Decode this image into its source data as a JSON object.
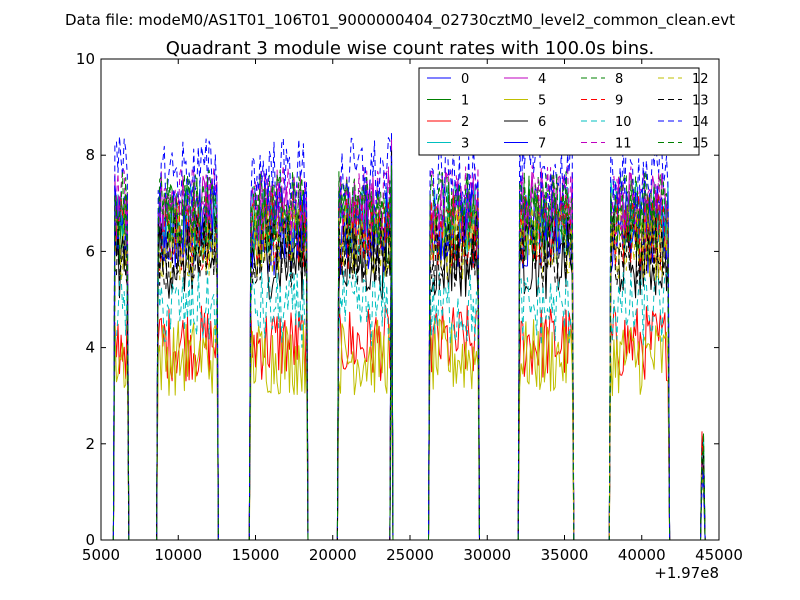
{
  "figure": {
    "suptitle": "Data file: modeM0/AS1T01_106T01_9000000404_02730cztM0_level2_common_clean.evt",
    "background": "#ffffff"
  },
  "chart_data": {
    "type": "line",
    "title": "Quadrant 3 module wise count rates with 100.0s bins.",
    "xlabel": "",
    "ylabel": "",
    "x_offset_label": "+1.97e8",
    "xlim": [
      5000,
      45000
    ],
    "ylim": [
      0,
      10
    ],
    "xticks": [
      5000,
      10000,
      15000,
      20000,
      25000,
      30000,
      35000,
      40000,
      45000
    ],
    "xtick_labels": [
      "5000",
      "10000",
      "15000",
      "20000",
      "25000",
      "30000",
      "35000",
      "40000",
      "45000"
    ],
    "yticks": [
      0,
      2,
      4,
      6,
      8,
      10
    ],
    "ytick_labels": [
      "0",
      "2",
      "4",
      "6",
      "8",
      "10"
    ],
    "grid": false,
    "legend_position": "top-right",
    "bin_width": 100,
    "segments": [
      {
        "start": 5900,
        "end": 6700
      },
      {
        "start": 8700,
        "end": 12500
      },
      {
        "start": 14700,
        "end": 18300
      },
      {
        "start": 20400,
        "end": 23800
      },
      {
        "start": 23800,
        "end": 24200
      },
      {
        "start": 26300,
        "end": 29400
      },
      {
        "start": 32100,
        "end": 35500
      },
      {
        "start": 38000,
        "end": 41700
      },
      {
        "start": 43900,
        "end": 44000
      }
    ],
    "series": [
      {
        "name": "0",
        "mean": 6.3,
        "color": "#0000ff",
        "dash": "solid"
      },
      {
        "name": "1",
        "mean": 6.5,
        "color": "#008000",
        "dash": "solid"
      },
      {
        "name": "2",
        "mean": 4.1,
        "color": "#ff0000",
        "dash": "solid"
      },
      {
        "name": "3",
        "mean": 6.7,
        "color": "#00bfbf",
        "dash": "solid"
      },
      {
        "name": "4",
        "mean": 6.9,
        "color": "#bf00bf",
        "dash": "solid"
      },
      {
        "name": "5",
        "mean": 3.8,
        "color": "#bfbf00",
        "dash": "solid"
      },
      {
        "name": "6",
        "mean": 5.8,
        "color": "#000000",
        "dash": "solid"
      },
      {
        "name": "7",
        "mean": 6.6,
        "color": "#0000ff",
        "dash": "solid"
      },
      {
        "name": "8",
        "mean": 6.8,
        "color": "#008000",
        "dash": "dashed"
      },
      {
        "name": "9",
        "mean": 6.4,
        "color": "#ff0000",
        "dash": "dashed"
      },
      {
        "name": "10",
        "mean": 4.8,
        "color": "#00bfbf",
        "dash": "dashed"
      },
      {
        "name": "11",
        "mean": 7.0,
        "color": "#bf00bf",
        "dash": "dashed"
      },
      {
        "name": "12",
        "mean": 6.2,
        "color": "#bfbf00",
        "dash": "dashed"
      },
      {
        "name": "13",
        "mean": 6.0,
        "color": "#000000",
        "dash": "dashed"
      },
      {
        "name": "14",
        "mean": 7.6,
        "color": "#0000ff",
        "dash": "dashed"
      },
      {
        "name": "15",
        "mean": 6.9,
        "color": "#008000",
        "dash": "dashed"
      }
    ]
  }
}
